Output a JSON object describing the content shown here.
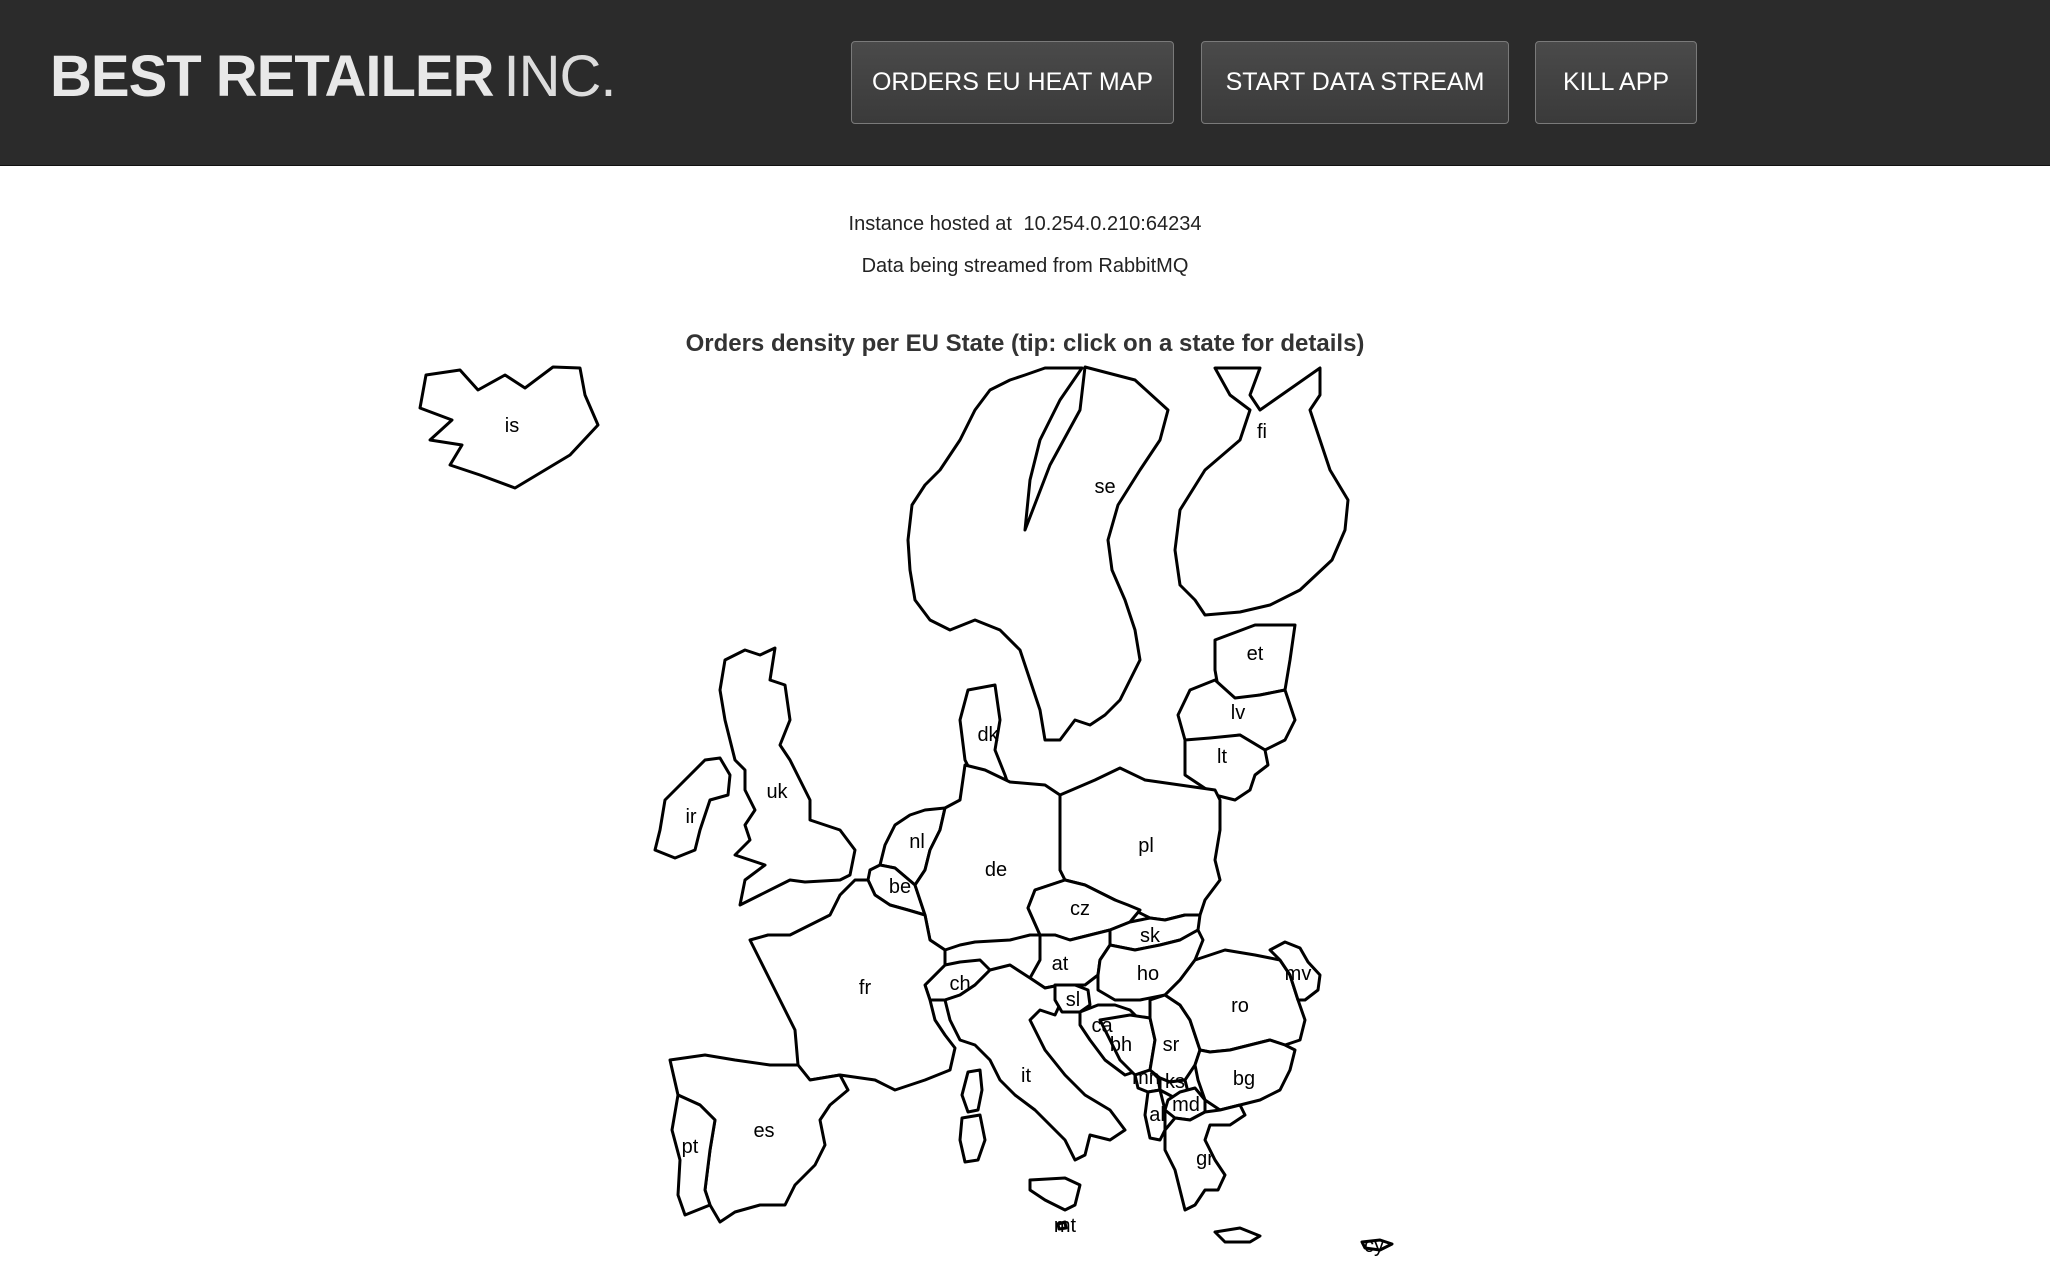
{
  "header": {
    "brand_bold": "BEST RETAILER",
    "brand_thin": "INC.",
    "buttons": {
      "heat_map": "ORDERS EU HEAT MAP",
      "start_stream": "START DATA STREAM",
      "kill_app": "KILL APP"
    }
  },
  "info": {
    "host_label": "Instance hosted at",
    "host_address": "10.254.0.210:64234",
    "stream_text": "Data being streamed from RabbitMQ"
  },
  "map": {
    "title": "Orders density per EU State (tip: click on a state for details)",
    "states": {
      "is": "is",
      "se": "se",
      "fi": "fi",
      "et": "et",
      "lv": "lv",
      "lt": "lt",
      "dk": "dk",
      "uk": "uk",
      "ir": "ir",
      "nl": "nl",
      "be": "be",
      "de": "de",
      "pl": "pl",
      "cz": "cz",
      "sk": "sk",
      "at": "at",
      "ho": "ho",
      "ch": "ch",
      "fr": "fr",
      "ro": "ro",
      "mv": "mv",
      "sl": "sl",
      "ca": "ca",
      "bh": "bh",
      "sr": "sr",
      "it": "it",
      "mn": "mn",
      "ks": "ks",
      "bg": "bg",
      "md": "md",
      "al": "al",
      "gr": "gr",
      "es": "es",
      "pt": "pt",
      "mt": "mt",
      "cy": "cy"
    }
  }
}
